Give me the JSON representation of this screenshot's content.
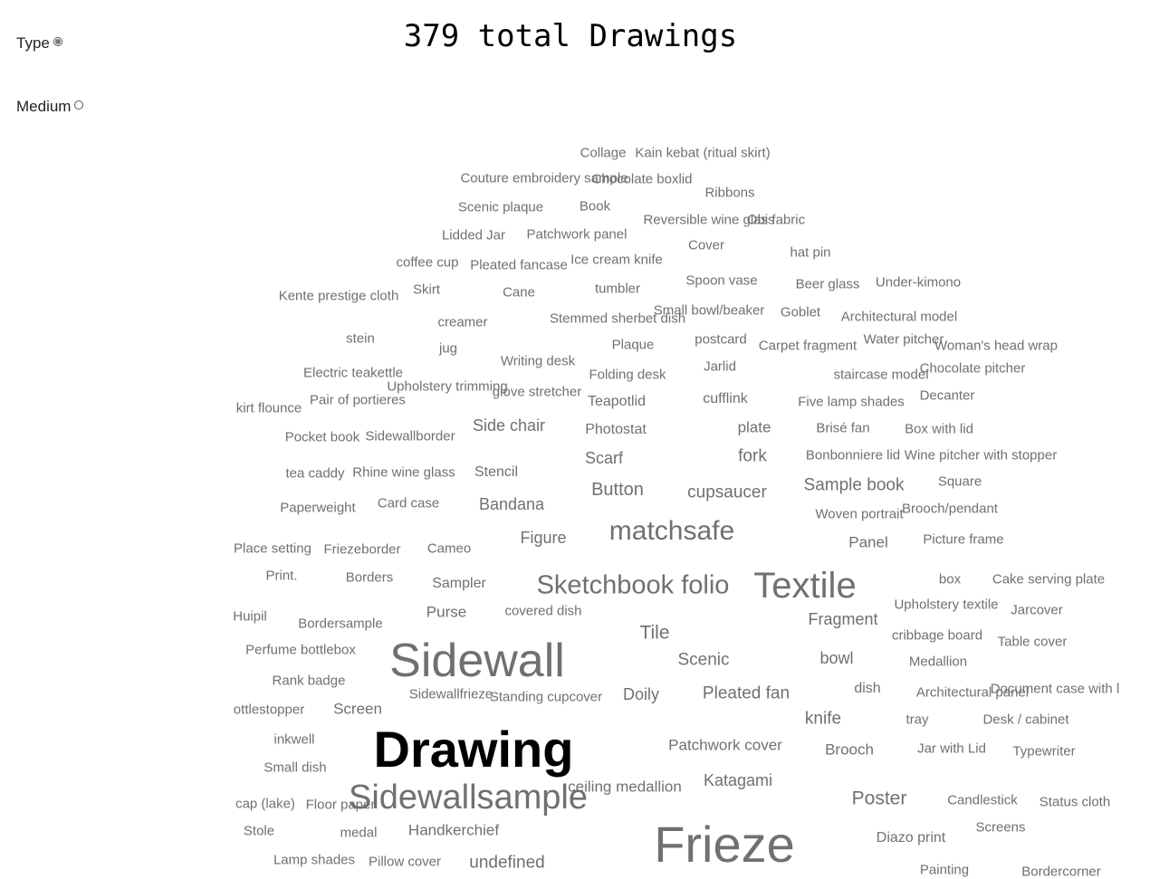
{
  "title": "379 total Drawings",
  "options": [
    {
      "label": "Type",
      "checked": true
    },
    {
      "label": "Medium",
      "checked": false
    }
  ],
  "colors": {
    "highlight": "#000000",
    "word": "#707070"
  },
  "words": [
    {
      "text": "Collage",
      "size": 15
    },
    {
      "text": "Kain kebat (ritual skirt)",
      "size": 15
    },
    {
      "text": "Couture embroidery sample",
      "size": 15
    },
    {
      "text": "Chocolate boxlid",
      "size": 15
    },
    {
      "text": "Ribbons",
      "size": 15
    },
    {
      "text": "Scenic plaque",
      "size": 15
    },
    {
      "text": "Book",
      "size": 15
    },
    {
      "text": "Reversible wine glass",
      "size": 15
    },
    {
      "text": "Obi fabric",
      "size": 15
    },
    {
      "text": "Lidded Jar",
      "size": 15
    },
    {
      "text": "Patchwork panel",
      "size": 15
    },
    {
      "text": "Cover",
      "size": 15
    },
    {
      "text": "hat pin",
      "size": 15
    },
    {
      "text": "coffee cup",
      "size": 15
    },
    {
      "text": "Pleated fancase",
      "size": 15
    },
    {
      "text": "Ice cream knife",
      "size": 15
    },
    {
      "text": "Kente prestige cloth",
      "size": 15
    },
    {
      "text": "Skirt",
      "size": 15
    },
    {
      "text": "Cane",
      "size": 15
    },
    {
      "text": "tumbler",
      "size": 15
    },
    {
      "text": "Spoon vase",
      "size": 15
    },
    {
      "text": "Beer glass",
      "size": 15
    },
    {
      "text": "Under-kimono",
      "size": 15
    },
    {
      "text": "creamer",
      "size": 15
    },
    {
      "text": "Stemmed sherbet dish",
      "size": 15
    },
    {
      "text": "Small bowl/beaker",
      "size": 15
    },
    {
      "text": "Goblet",
      "size": 15
    },
    {
      "text": "Architectural model",
      "size": 15
    },
    {
      "text": "stein",
      "size": 15
    },
    {
      "text": "jug",
      "size": 15
    },
    {
      "text": "Plaque",
      "size": 15
    },
    {
      "text": "postcard",
      "size": 15
    },
    {
      "text": "Carpet fragment",
      "size": 15
    },
    {
      "text": "Water pitcher",
      "size": 15
    },
    {
      "text": "Woman's head wrap",
      "size": 15
    },
    {
      "text": "Electric teakettle",
      "size": 15
    },
    {
      "text": "Writing desk",
      "size": 15
    },
    {
      "text": "Folding desk",
      "size": 15
    },
    {
      "text": "Jarlid",
      "size": 15
    },
    {
      "text": "staircase model",
      "size": 15
    },
    {
      "text": "Chocolate pitcher",
      "size": 15
    },
    {
      "text": "Upholstery trimming",
      "size": 15
    },
    {
      "text": "glove stretcher",
      "size": 15
    },
    {
      "text": "Pair of portieres",
      "size": 15
    },
    {
      "text": "Teapotlid",
      "size": 16
    },
    {
      "text": "cufflink",
      "size": 16
    },
    {
      "text": "Five lamp shades",
      "size": 15
    },
    {
      "text": "Decanter",
      "size": 15
    },
    {
      "text": "kirt flounce",
      "size": 15
    },
    {
      "text": "Side chair",
      "size": 18
    },
    {
      "text": "Photostat",
      "size": 16
    },
    {
      "text": "plate",
      "size": 17
    },
    {
      "text": "Brisé fan",
      "size": 15
    },
    {
      "text": "Box with lid",
      "size": 15
    },
    {
      "text": "Pocket book",
      "size": 15
    },
    {
      "text": "Sidewallborder",
      "size": 15
    },
    {
      "text": "Scarf",
      "size": 18
    },
    {
      "text": "fork",
      "size": 19
    },
    {
      "text": "Bonbonniere lid",
      "size": 15
    },
    {
      "text": "Wine pitcher with stopper",
      "size": 15
    },
    {
      "text": "tea caddy",
      "size": 15
    },
    {
      "text": "Rhine wine glass",
      "size": 15
    },
    {
      "text": "Stencil",
      "size": 16
    },
    {
      "text": "Button",
      "size": 20
    },
    {
      "text": "cupsaucer",
      "size": 19
    },
    {
      "text": "Sample book",
      "size": 19
    },
    {
      "text": "Square",
      "size": 15
    },
    {
      "text": "Paperweight",
      "size": 15
    },
    {
      "text": "Card case",
      "size": 15
    },
    {
      "text": "Bandana",
      "size": 18
    },
    {
      "text": "Woven portrait",
      "size": 15
    },
    {
      "text": "Brooch/pendant",
      "size": 15
    },
    {
      "text": "matchsafe",
      "size": 30
    },
    {
      "text": "Figure",
      "size": 18
    },
    {
      "text": "Panel",
      "size": 17
    },
    {
      "text": "Picture frame",
      "size": 15
    },
    {
      "text": "Place setting",
      "size": 15
    },
    {
      "text": "Friezeborder",
      "size": 15
    },
    {
      "text": "Cameo",
      "size": 15
    },
    {
      "text": "Sketchbook folio",
      "size": 29
    },
    {
      "text": "Textile",
      "size": 40
    },
    {
      "text": "box",
      "size": 15
    },
    {
      "text": "Cake serving plate",
      "size": 15
    },
    {
      "text": "Print.",
      "size": 15
    },
    {
      "text": "Borders",
      "size": 15
    },
    {
      "text": "Sampler",
      "size": 16
    },
    {
      "text": "Upholstery textile",
      "size": 15
    },
    {
      "text": "Jarcover",
      "size": 15
    },
    {
      "text": "Purse",
      "size": 17
    },
    {
      "text": "covered dish",
      "size": 15
    },
    {
      "text": "Fragment",
      "size": 18
    },
    {
      "text": "Huipil",
      "size": 15
    },
    {
      "text": "Bordersample",
      "size": 15
    },
    {
      "text": "Tile",
      "size": 21
    },
    {
      "text": "cribbage board",
      "size": 15
    },
    {
      "text": "Table cover",
      "size": 15
    },
    {
      "text": "Perfume bottlebox",
      "size": 15
    },
    {
      "text": "Sidewall",
      "size": 52
    },
    {
      "text": "Scenic",
      "size": 19
    },
    {
      "text": "bowl",
      "size": 18
    },
    {
      "text": "Medallion",
      "size": 15
    },
    {
      "text": "Rank badge",
      "size": 15
    },
    {
      "text": "dish",
      "size": 16
    },
    {
      "text": "Document case with l",
      "size": 15
    },
    {
      "text": "Sidewallfrieze",
      "size": 15
    },
    {
      "text": "Standing cupcover",
      "size": 15
    },
    {
      "text": "Doily",
      "size": 18
    },
    {
      "text": "Pleated fan",
      "size": 19
    },
    {
      "text": "Architectural panel",
      "size": 15
    },
    {
      "text": "ottlestopper",
      "size": 15
    },
    {
      "text": "Screen",
      "size": 17
    },
    {
      "text": "knife",
      "size": 19
    },
    {
      "text": "tray",
      "size": 15
    },
    {
      "text": "Desk / cabinet",
      "size": 15
    },
    {
      "text": "inkwell",
      "size": 15
    },
    {
      "text": "Drawing",
      "size": 56,
      "highlight": true
    },
    {
      "text": "Patchwork cover",
      "size": 17
    },
    {
      "text": "Brooch",
      "size": 17
    },
    {
      "text": "Jar with Lid",
      "size": 15
    },
    {
      "text": "Typewriter",
      "size": 15
    },
    {
      "text": "Small dish",
      "size": 15
    },
    {
      "text": "Katagami",
      "size": 18
    },
    {
      "text": "ceiling medallion",
      "size": 17
    },
    {
      "text": "cap (lake)",
      "size": 15
    },
    {
      "text": "Floor paper",
      "size": 15
    },
    {
      "text": "Sidewallsample",
      "size": 38
    },
    {
      "text": "Poster",
      "size": 21
    },
    {
      "text": "Candlestick",
      "size": 15
    },
    {
      "text": "Status cloth",
      "size": 15
    },
    {
      "text": "Stole",
      "size": 15
    },
    {
      "text": "medal",
      "size": 15
    },
    {
      "text": "Handkerchief",
      "size": 17
    },
    {
      "text": "Frieze",
      "size": 56
    },
    {
      "text": "Screens",
      "size": 15
    },
    {
      "text": "Diazo print",
      "size": 16
    },
    {
      "text": "Lamp shades",
      "size": 15
    },
    {
      "text": "Pillow cover",
      "size": 15
    },
    {
      "text": "undefined",
      "size": 19
    },
    {
      "text": "Painting",
      "size": 15
    },
    {
      "text": "Bordercorner",
      "size": 15
    }
  ]
}
